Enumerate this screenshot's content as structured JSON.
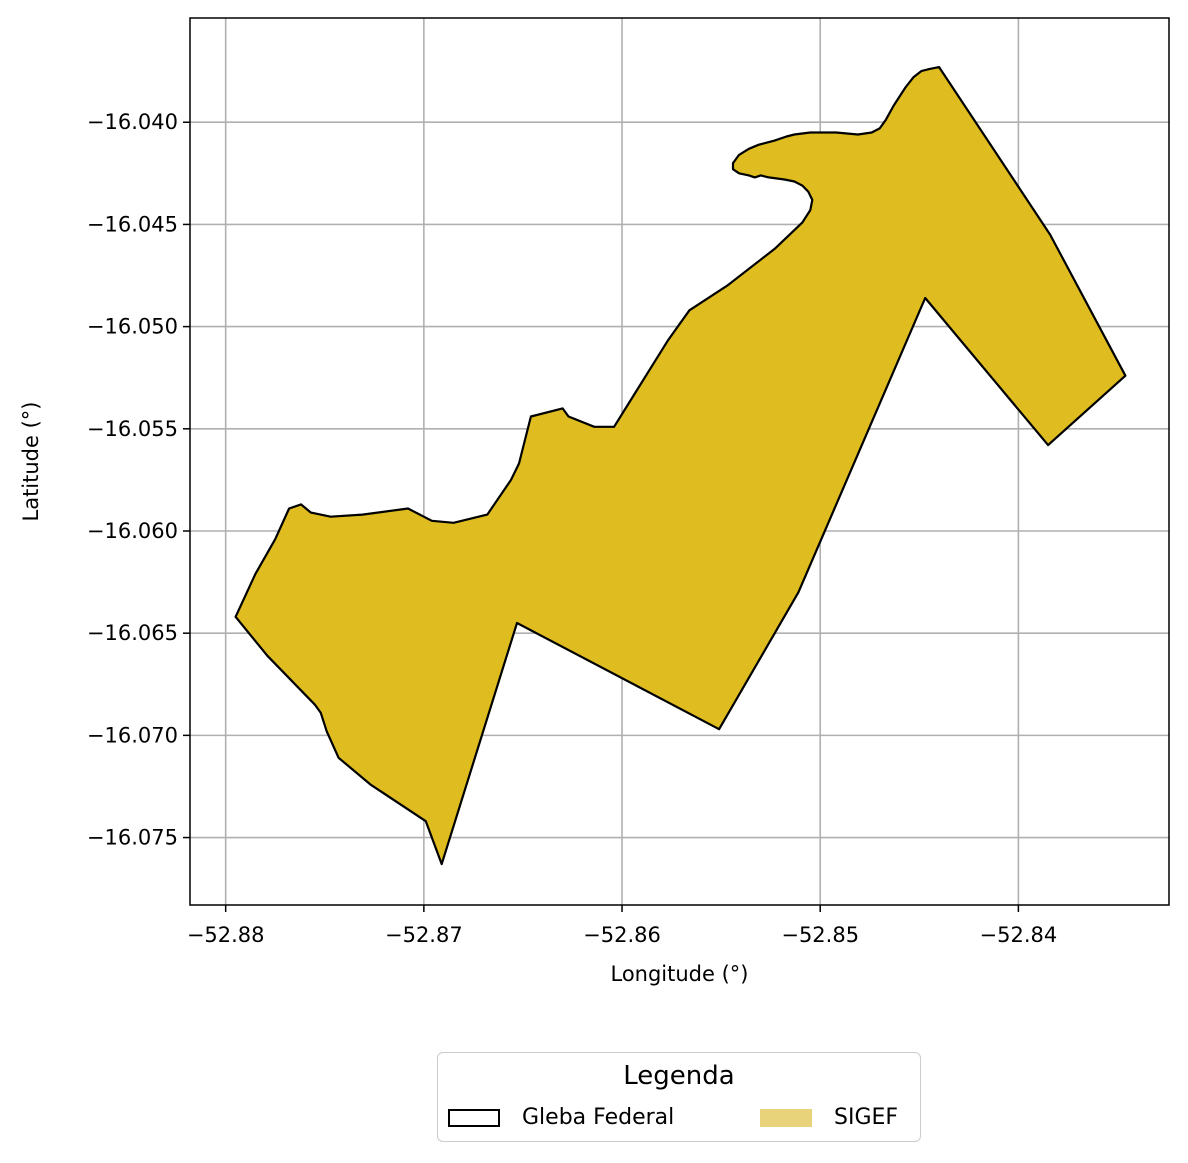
{
  "chart_data": {
    "type": "map",
    "xlabel": "Longitude (°)",
    "ylabel": "Latitude (°)",
    "xlim": [
      -52.8818,
      -52.8324
    ],
    "ylim": [
      -16.0783,
      -16.0349
    ],
    "xticks": [
      -52.88,
      -52.87,
      -52.86,
      -52.85,
      -52.84
    ],
    "xtick_labels": [
      "−52.88",
      "−52.87",
      "−52.86",
      "−52.85",
      "−52.84"
    ],
    "yticks": [
      -16.04,
      -16.045,
      -16.05,
      -16.055,
      -16.06,
      -16.065,
      -16.07,
      -16.075
    ],
    "ytick_labels": [
      "−16.040",
      "−16.045",
      "−16.050",
      "−16.055",
      "−16.060",
      "−16.065",
      "−16.070",
      "−16.075"
    ],
    "grid": true,
    "legend": {
      "title": "Legenda",
      "placement": "bottom-center",
      "entries": [
        {
          "label": "Gleba Federal",
          "style": "outline",
          "color": "#000000"
        },
        {
          "label": "SIGEF",
          "style": "fill",
          "color": "#e8d37a"
        }
      ]
    },
    "series": [
      {
        "name": "SIGEF",
        "fill": "#dfbd20",
        "stroke": "#000000",
        "polygon": [
          [
            -52.8795,
            -16.0642
          ],
          [
            -52.8785,
            -16.0621
          ],
          [
            -52.8775,
            -16.0604
          ],
          [
            -52.8768,
            -16.0589
          ],
          [
            -52.8762,
            -16.0587
          ],
          [
            -52.8757,
            -16.0591
          ],
          [
            -52.8747,
            -16.0593
          ],
          [
            -52.8731,
            -16.0592
          ],
          [
            -52.8708,
            -16.0589
          ],
          [
            -52.8696,
            -16.0595
          ],
          [
            -52.8685,
            -16.0596
          ],
          [
            -52.8668,
            -16.0592
          ],
          [
            -52.8656,
            -16.0575
          ],
          [
            -52.8652,
            -16.0567
          ],
          [
            -52.8646,
            -16.0544
          ],
          [
            -52.863,
            -16.054
          ],
          [
            -52.8627,
            -16.0544
          ],
          [
            -52.8614,
            -16.0549
          ],
          [
            -52.8604,
            -16.0549
          ],
          [
            -52.8577,
            -16.0507
          ],
          [
            -52.8566,
            -16.0492
          ],
          [
            -52.8547,
            -16.048
          ],
          [
            -52.8523,
            -16.0462
          ],
          [
            -52.8509,
            -16.0449
          ],
          [
            -52.8505,
            -16.0443
          ],
          [
            -52.8504,
            -16.0438
          ],
          [
            -52.8506,
            -16.0434
          ],
          [
            -52.8509,
            -16.0431
          ],
          [
            -52.8513,
            -16.0429
          ],
          [
            -52.8518,
            -16.0428
          ],
          [
            -52.8526,
            -16.0427
          ],
          [
            -52.853,
            -16.0426
          ],
          [
            -52.8533,
            -16.0427
          ],
          [
            -52.8536,
            -16.0426
          ],
          [
            -52.8541,
            -16.0425
          ],
          [
            -52.8544,
            -16.0423
          ],
          [
            -52.8544,
            -16.042
          ],
          [
            -52.8541,
            -16.0416
          ],
          [
            -52.8536,
            -16.0413
          ],
          [
            -52.8531,
            -16.0411
          ],
          [
            -52.8523,
            -16.0409
          ],
          [
            -52.8517,
            -16.0407
          ],
          [
            -52.8513,
            -16.0406
          ],
          [
            -52.8505,
            -16.0405
          ],
          [
            -52.8492,
            -16.0405
          ],
          [
            -52.8481,
            -16.0406
          ],
          [
            -52.8474,
            -16.0405
          ],
          [
            -52.847,
            -16.0403
          ],
          [
            -52.8467,
            -16.0399
          ],
          [
            -52.8463,
            -16.0392
          ],
          [
            -52.8457,
            -16.0383
          ],
          [
            -52.8453,
            -16.0378
          ],
          [
            -52.8449,
            -16.0375
          ],
          [
            -52.8445,
            -16.0374
          ],
          [
            -52.844,
            -16.0373
          ],
          [
            -52.8384,
            -16.0455
          ],
          [
            -52.8346,
            -16.0524
          ],
          [
            -52.8385,
            -16.0558
          ],
          [
            -52.8447,
            -16.0486
          ],
          [
            -52.8511,
            -16.063
          ],
          [
            -52.8551,
            -16.0697
          ],
          [
            -52.8653,
            -16.0645
          ],
          [
            -52.8691,
            -16.0763
          ],
          [
            -52.8699,
            -16.0742
          ],
          [
            -52.8727,
            -16.0724
          ],
          [
            -52.8743,
            -16.0711
          ],
          [
            -52.8749,
            -16.0698
          ],
          [
            -52.8752,
            -16.0689
          ],
          [
            -52.8755,
            -16.0685
          ],
          [
            -52.8779,
            -16.0661
          ],
          [
            -52.8795,
            -16.0642
          ]
        ]
      }
    ]
  }
}
